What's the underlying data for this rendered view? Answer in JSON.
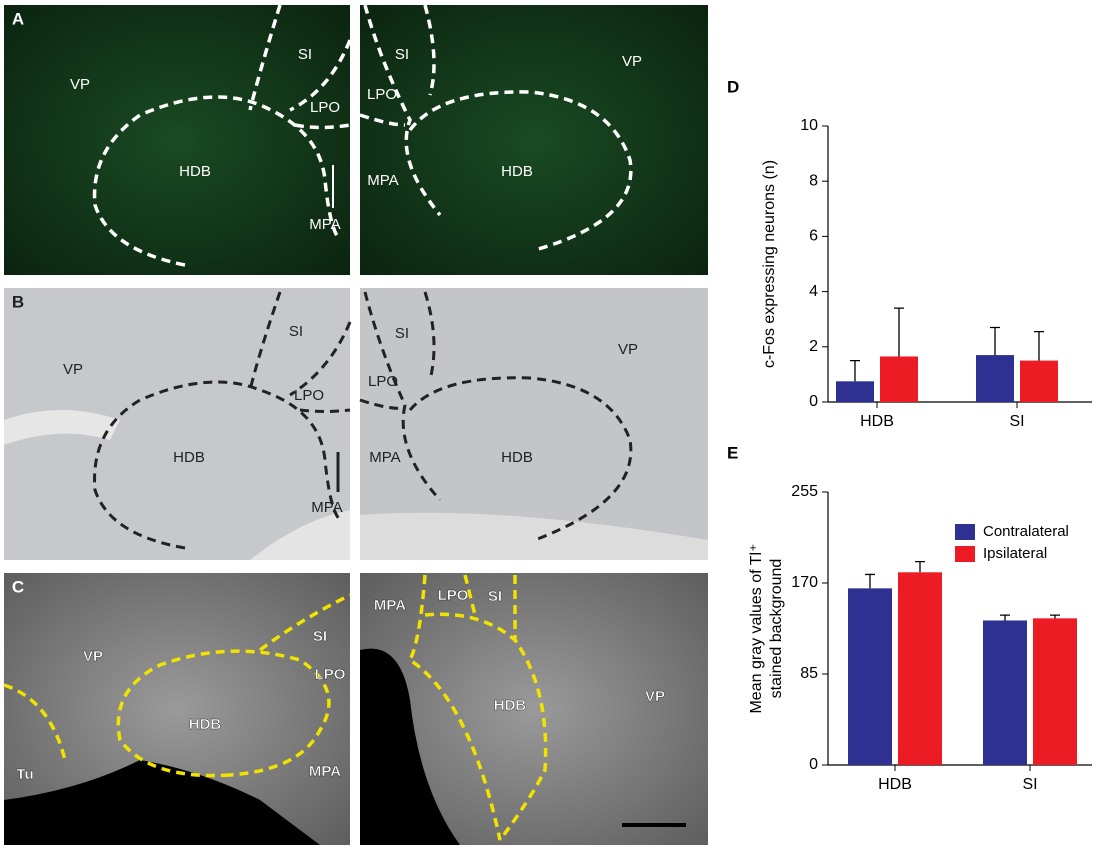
{
  "panels": [
    {
      "letter": "A",
      "left": [
        "VP",
        "SI",
        "LPO",
        "HDB",
        "MPA"
      ],
      "right": [
        "SI",
        "LPO",
        "MPA",
        "HDB",
        "VP"
      ]
    },
    {
      "letter": "B",
      "left": [
        "VP",
        "SI",
        "LPO",
        "HDB",
        "MPA"
      ],
      "right": [
        "SI",
        "LPO",
        "MPA",
        "HDB",
        "VP"
      ]
    },
    {
      "letter": "C",
      "left": [
        "VP",
        "SI",
        "LPO",
        "HDB",
        "Tu",
        "MPA"
      ],
      "right": [
        "MPA",
        "LPO",
        "SI",
        "HDB",
        "VP"
      ]
    }
  ],
  "chart_data": [
    {
      "type": "bar",
      "letter": "D",
      "ylabel": "c-Fos expressing neurons (n)",
      "categories": [
        "HDB",
        "SI"
      ],
      "ylim": [
        0,
        10
      ],
      "yticks": [
        0,
        2,
        4,
        6,
        8,
        10
      ],
      "series": [
        {
          "color": "#2e3192",
          "values": [
            0.75,
            1.7
          ],
          "errors": [
            0.75,
            1.0
          ]
        },
        {
          "color": "#ed1c24",
          "values": [
            1.65,
            1.5
          ],
          "errors": [
            1.75,
            1.05
          ]
        }
      ]
    },
    {
      "type": "bar",
      "letter": "E",
      "ylabel": [
        "Mean gray values of Tl⁺",
        "stained background"
      ],
      "categories": [
        "HDB",
        "SI"
      ],
      "ylim": [
        0,
        255
      ],
      "yticks": [
        0,
        85,
        170,
        255
      ],
      "legend": "upper right",
      "series": [
        {
          "name": "Contralateral",
          "color": "#2e3192",
          "values": [
            165,
            135
          ],
          "errors": [
            13,
            5
          ]
        },
        {
          "name": "Ipsilateral",
          "color": "#ed1c24",
          "values": [
            180,
            137
          ],
          "errors": [
            10,
            3
          ]
        }
      ]
    }
  ]
}
